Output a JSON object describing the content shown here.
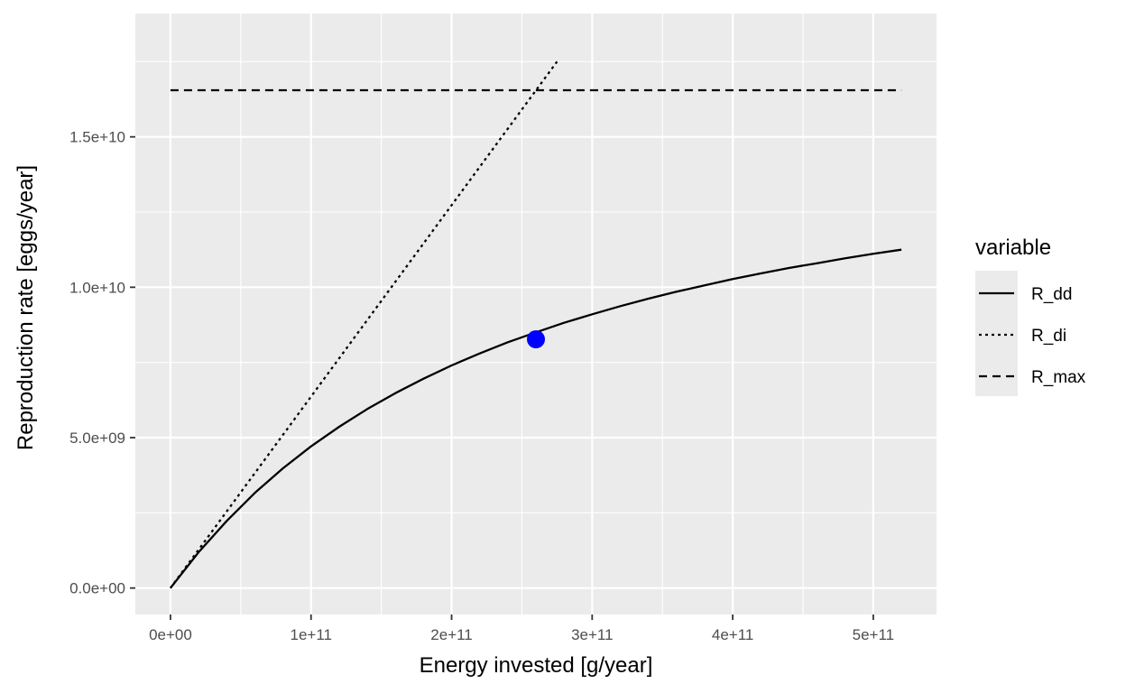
{
  "chart_data": {
    "type": "line",
    "title": "",
    "xlabel": "Energy invested [g/year]",
    "ylabel": "Reproduction rate [eggs/year]",
    "xlim": [
      -25000000000.0,
      545000000000.0
    ],
    "ylim": [
      -880000000.0,
      19100000000.0
    ],
    "x_ticks": [
      0,
      100000000000.0,
      200000000000.0,
      300000000000.0,
      400000000000.0,
      500000000000.0
    ],
    "x_tick_labels": [
      "0e+00",
      "1e+11",
      "2e+11",
      "3e+11",
      "4e+11",
      "5e+11"
    ],
    "y_ticks": [
      0,
      5000000000.0,
      10000000000.0,
      15000000000.0
    ],
    "y_tick_labels": [
      "0.0e+00",
      "5.0e+09",
      "1.0e+10",
      "1.5e+10"
    ],
    "grid": true,
    "legend_title": "variable",
    "legend_position": "right",
    "series": [
      {
        "name": "R_dd",
        "linetype": "solid",
        "x": [
          0,
          20000000000.0,
          40000000000.0,
          60000000000.0,
          80000000000.0,
          100000000000.0,
          120000000000.0,
          140000000000.0,
          160000000000.0,
          180000000000.0,
          200000000000.0,
          220000000000.0,
          240000000000.0,
          260000000000.0,
          280000000000.0,
          300000000000.0,
          320000000000.0,
          340000000000.0,
          360000000000.0,
          380000000000.0,
          400000000000.0,
          420000000000.0,
          440000000000.0,
          460000000000.0,
          480000000000.0,
          500000000000.0,
          520000000000.0
        ],
        "y": [
          0,
          1190000000.0,
          2230000000.0,
          3160000000.0,
          3980000000.0,
          4710000000.0,
          5360000000.0,
          5950000000.0,
          6480000000.0,
          6960000000.0,
          7400000000.0,
          7800000000.0,
          8170000000.0,
          8500000000.0,
          8820000000.0,
          9100000000.0,
          9370000000.0,
          9620000000.0,
          9850000000.0,
          10060000000.0,
          10270000000.0,
          10460000000.0,
          10640000000.0,
          10800000000.0,
          10960000000.0,
          11110000000.0,
          11250000000.0
        ]
      },
      {
        "name": "R_di",
        "linetype": "dotted",
        "x": [
          0,
          275000000000.0
        ],
        "y": [
          0,
          17500000000.0
        ]
      },
      {
        "name": "R_max",
        "linetype": "dashed",
        "x": [
          0,
          520000000000.0
        ],
        "y": [
          16550000000.0,
          16550000000.0
        ]
      }
    ],
    "points": [
      {
        "x": 260000000000.0,
        "y": 8270000000.0,
        "color": "#0000ff"
      }
    ]
  },
  "colors": {
    "panel": "#ebebeb",
    "grid": "#ffffff",
    "line": "#000000",
    "point": "#0000ff"
  }
}
